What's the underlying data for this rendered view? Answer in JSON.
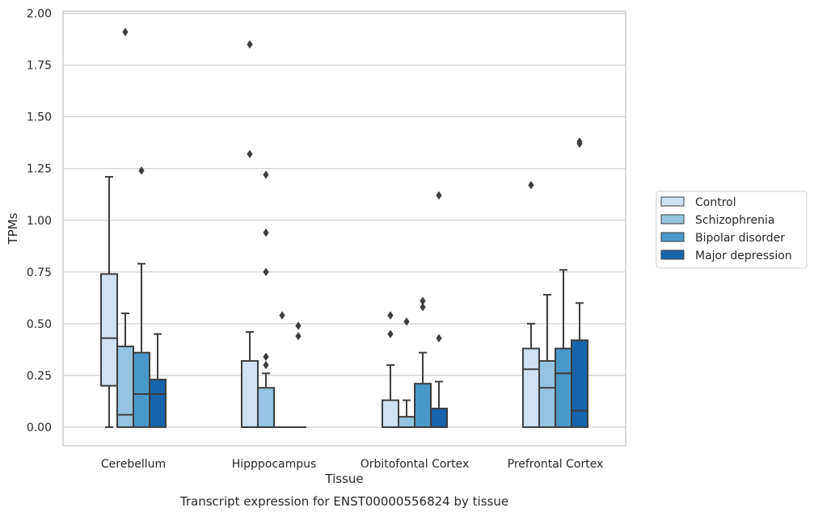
{
  "chart_data": {
    "type": "box",
    "xlabel": "Tissue",
    "ylabel": "TPMs",
    "caption": "Transcript expression for ENST00000556824 by tissue",
    "ylim": [
      -0.09,
      2.01
    ],
    "yticks": [
      "0.00",
      "0.25",
      "0.50",
      "0.75",
      "1.00",
      "1.25",
      "1.50",
      "1.75",
      "2.00"
    ],
    "grid": true,
    "legend_position": "right",
    "categories": [
      "Cerebellum",
      "Hipppocampus",
      "Orbitofontal Cortex",
      "Prefrontal Cortex"
    ],
    "series": [
      {
        "name": "Control",
        "color": "#d0e1f2",
        "boxes": [
          {
            "q1": 0.2,
            "median": 0.43,
            "q3": 0.74,
            "whislo": 0.0,
            "whishi": 1.21,
            "fliers": []
          },
          {
            "q1": 0.0,
            "median": 0.0,
            "q3": 0.32,
            "whislo": 0.0,
            "whishi": 0.46,
            "fliers": [
              1.32,
              1.85
            ]
          },
          {
            "q1": 0.0,
            "median": 0.0,
            "q3": 0.13,
            "whislo": 0.0,
            "whishi": 0.3,
            "fliers": [
              0.45,
              0.54
            ]
          },
          {
            "q1": 0.0,
            "median": 0.28,
            "q3": 0.38,
            "whislo": 0.0,
            "whishi": 0.5,
            "fliers": [
              1.17
            ]
          }
        ]
      },
      {
        "name": "Schizophrenia",
        "color": "#94c4df",
        "boxes": [
          {
            "q1": 0.0,
            "median": 0.06,
            "q3": 0.39,
            "whislo": 0.0,
            "whishi": 0.55,
            "fliers": [
              1.91
            ]
          },
          {
            "q1": 0.0,
            "median": 0.0,
            "q3": 0.19,
            "whislo": 0.0,
            "whishi": 0.26,
            "fliers": [
              0.3,
              0.34,
              0.75,
              0.94,
              1.22
            ]
          },
          {
            "q1": 0.0,
            "median": 0.0,
            "q3": 0.05,
            "whislo": 0.0,
            "whishi": 0.13,
            "fliers": [
              0.51
            ]
          },
          {
            "q1": 0.0,
            "median": 0.19,
            "q3": 0.32,
            "whislo": 0.0,
            "whishi": 0.64,
            "fliers": []
          }
        ]
      },
      {
        "name": "Bipolar disorder",
        "color": "#4a98c9",
        "boxes": [
          {
            "q1": 0.0,
            "median": 0.16,
            "q3": 0.36,
            "whislo": 0.0,
            "whishi": 0.79,
            "fliers": [
              1.24
            ]
          },
          {
            "q1": 0.0,
            "median": 0.0,
            "q3": 0.0,
            "whislo": 0.0,
            "whishi": 0.0,
            "fliers": [
              0.54
            ]
          },
          {
            "q1": 0.0,
            "median": 0.0,
            "q3": 0.21,
            "whislo": 0.0,
            "whishi": 0.36,
            "fliers": [
              0.58,
              0.61
            ]
          },
          {
            "q1": 0.0,
            "median": 0.26,
            "q3": 0.38,
            "whislo": 0.0,
            "whishi": 0.76,
            "fliers": []
          }
        ]
      },
      {
        "name": "Major depression",
        "color": "#1764ab",
        "boxes": [
          {
            "q1": 0.0,
            "median": 0.16,
            "q3": 0.23,
            "whislo": 0.0,
            "whishi": 0.45,
            "fliers": []
          },
          {
            "q1": 0.0,
            "median": 0.0,
            "q3": 0.0,
            "whislo": 0.0,
            "whishi": 0.0,
            "fliers": [
              0.44,
              0.49
            ]
          },
          {
            "q1": 0.0,
            "median": 0.0,
            "q3": 0.09,
            "whislo": 0.0,
            "whishi": 0.22,
            "fliers": [
              0.43,
              1.12
            ]
          },
          {
            "q1": 0.0,
            "median": 0.08,
            "q3": 0.42,
            "whislo": 0.0,
            "whishi": 0.6,
            "fliers": [
              1.37,
              1.38
            ]
          }
        ]
      }
    ]
  }
}
